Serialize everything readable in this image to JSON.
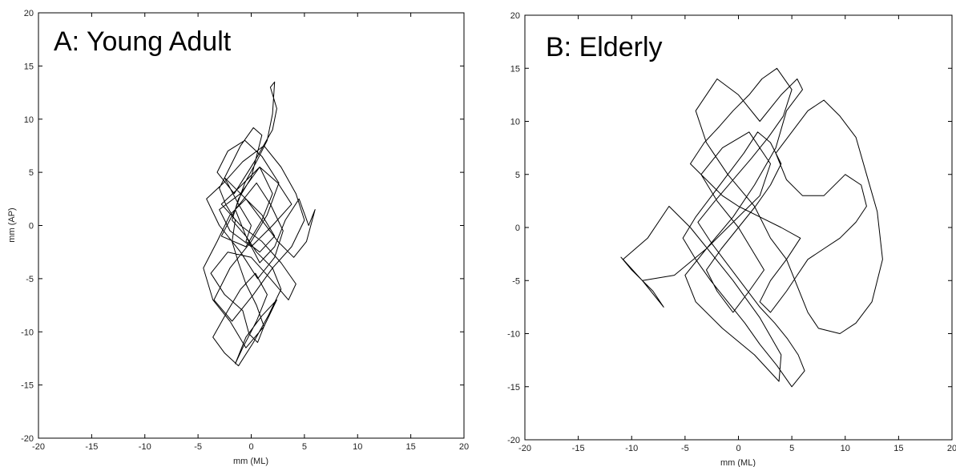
{
  "chart_data": [
    {
      "type": "line",
      "title": "A: Young Adult",
      "xlabel": "mm (ML)",
      "ylabel": "mm (AP)",
      "xlim": [
        -20,
        20
      ],
      "ylim": [
        -20,
        20
      ],
      "xticks": [
        -20,
        -15,
        -10,
        -5,
        0,
        5,
        10,
        15,
        20
      ],
      "yticks": [
        -20,
        -15,
        -10,
        -5,
        0,
        5,
        10,
        15,
        20
      ],
      "grid": false,
      "series": [
        {
          "color": "#000000",
          "x": [
            0.0,
            -1.2,
            -2.5,
            -1.0,
            0.8,
            2.0,
            1.0,
            -0.5,
            -2.8,
            -1.5,
            0.5,
            1.8,
            3.0,
            2.2,
            0.6,
            -1.0,
            -3.0,
            -4.2,
            -2.6,
            -0.8,
            1.2,
            2.8,
            4.2,
            5.0,
            3.8,
            2.0,
            0.2,
            -1.8,
            -3.5,
            -2.0,
            0.0,
            1.5,
            2.6,
            1.0,
            -0.6,
            -2.2,
            -3.2,
            -1.6,
            0.3,
            2.0,
            2.4,
            1.8,
            2.2,
            2.0,
            1.5,
            0.5,
            -0.6,
            -1.5,
            -0.5,
            0.8,
            2.2,
            3.2,
            4.5,
            5.4,
            6.0,
            5.2,
            4.0,
            2.5,
            1.0,
            -0.5,
            -2.0,
            -3.2,
            -4.5,
            -3.6,
            -2.0,
            -0.5,
            1.2,
            2.4,
            1.0,
            -0.5,
            -1.5,
            -0.8,
            0.5,
            1.5,
            0.4,
            -1.0,
            -2.2,
            -3.6,
            -2.5,
            -1.2,
            0.2,
            1.6,
            2.8,
            2.0,
            0.5,
            -0.5,
            -1.8,
            -1.2,
            0.0,
            0.5,
            1.0,
            0.2,
            -1.0,
            -2.0,
            -3.0,
            -2.4,
            -1.5,
            -1.8,
            -1.2,
            -0.5,
            0.5,
            1.2,
            0.6,
            -0.2,
            -0.8,
            -2.5,
            -3.8,
            -2.2,
            0.0,
            1.8,
            3.5,
            4.2,
            2.8,
            1.0,
            -1.0,
            -2.8,
            -1.2,
            0.8,
            2.5,
            3.8,
            2.0,
            0.0,
            -2.0,
            -3.0,
            -1.0,
            1.0,
            2.2,
            0.8,
            -0.5,
            0.0
          ],
          "y": [
            0.0,
            2.0,
            4.5,
            3.0,
            5.5,
            3.0,
            0.5,
            -2.0,
            -1.0,
            1.5,
            4.0,
            2.0,
            -0.5,
            -3.0,
            -5.0,
            -2.5,
            0.0,
            2.5,
            4.0,
            6.0,
            7.5,
            5.5,
            3.0,
            0.5,
            -2.0,
            -4.0,
            -6.5,
            -9.0,
            -7.0,
            -4.0,
            -1.5,
            1.0,
            4.0,
            6.5,
            8.0,
            7.0,
            5.0,
            3.0,
            6.0,
            9.0,
            11.0,
            13.0,
            13.5,
            10.5,
            8.0,
            6.0,
            4.0,
            1.5,
            -1.0,
            -3.5,
            -2.0,
            0.5,
            2.5,
            0.0,
            1.5,
            -1.5,
            -3.0,
            -1.5,
            0.5,
            2.5,
            1.0,
            -1.5,
            -4.0,
            -7.0,
            -9.0,
            -11.5,
            -9.5,
            -7.0,
            -8.5,
            -10.5,
            -13.0,
            -11.5,
            -9.0,
            -6.5,
            -4.5,
            -6.0,
            -8.0,
            -10.5,
            -12.0,
            -13.2,
            -11.0,
            -8.5,
            -6.0,
            -4.0,
            -2.5,
            -1.0,
            0.5,
            2.5,
            4.5,
            6.5,
            8.5,
            9.2,
            7.5,
            5.5,
            3.5,
            2.0,
            0.5,
            -1.5,
            -3.5,
            -5.5,
            -7.5,
            -9.5,
            -11.0,
            -10.2,
            -8.0,
            -6.5,
            -4.5,
            -2.5,
            -3.0,
            -5.0,
            -7.0,
            -5.5,
            -3.5,
            -1.5,
            0.0,
            2.0,
            3.5,
            5.5,
            4.0,
            2.0,
            0.0,
            -2.0,
            -0.5,
            1.5,
            3.0,
            1.0,
            -1.0,
            -2.5,
            -1.5,
            0.0
          ]
        }
      ]
    },
    {
      "type": "line",
      "title": "B: Elderly",
      "xlabel": "mm (ML)",
      "ylabel": "",
      "xlim": [
        -20,
        20
      ],
      "ylim": [
        -20,
        20
      ],
      "xticks": [
        -20,
        -15,
        -10,
        -5,
        0,
        5,
        10,
        15,
        20
      ],
      "yticks": [
        -20,
        -15,
        -10,
        -5,
        0,
        5,
        10,
        15,
        20
      ],
      "grid": false,
      "series": [
        {
          "color": "#000000",
          "x": [
            0.0,
            -2.0,
            -3.5,
            -1.5,
            1.0,
            3.0,
            2.0,
            -0.5,
            -3.0,
            -5.0,
            -4.0,
            -1.5,
            1.5,
            3.8,
            4.0,
            2.0,
            -0.5,
            -2.5,
            -4.5,
            -6.5,
            -8.5,
            -10.8,
            -9.0,
            -7.0,
            -8.0,
            -10.0,
            -11.0,
            -9.0,
            -6.0,
            -3.0,
            -0.5,
            1.5,
            3.5,
            4.5,
            6.0,
            5.5,
            4.0,
            2.0,
            0.0,
            -2.0,
            -4.0,
            -3.0,
            -1.0,
            1.5,
            3.0,
            4.5,
            5.5,
            6.5,
            7.5,
            9.5,
            11.0,
            12.5,
            13.5,
            13.0,
            12.0,
            11.0,
            9.5,
            8.0,
            6.5,
            5.0,
            3.5,
            4.5,
            6.0,
            8.0,
            10.0,
            11.5,
            12.0,
            11.0,
            9.5,
            8.0,
            6.5,
            5.5,
            4.5,
            3.0,
            2.0,
            3.0,
            4.5,
            5.8,
            4.0,
            2.0,
            0.0,
            -1.5,
            -3.0,
            -4.5,
            -3.2,
            -1.8,
            -0.5,
            1.0,
            2.2,
            3.6,
            5.0,
            4.2,
            2.8,
            1.2,
            -0.5,
            -2.2,
            -3.8,
            -2.5,
            -1.0,
            0.5,
            2.0,
            3.4,
            4.6,
            5.6,
            6.2,
            5.0,
            3.6,
            2.0,
            0.6,
            -1.0,
            -2.6,
            -4.0,
            -5.2,
            -4.0,
            -2.5,
            -1.0,
            0.5,
            1.8,
            3.0,
            4.0,
            3.0,
            1.6,
            0.0,
            -1.6,
            -3.0,
            -2.0,
            -0.5,
            1.0,
            2.4,
            1.2,
            0.0
          ],
          "y": [
            0.0,
            2.5,
            5.0,
            7.5,
            9.0,
            6.0,
            3.0,
            0.5,
            -2.0,
            -4.5,
            -7.0,
            -9.5,
            -12.0,
            -14.5,
            -12.0,
            -8.5,
            -5.0,
            -2.5,
            0.0,
            2.0,
            -1.0,
            -3.0,
            -5.0,
            -7.5,
            -6.0,
            -4.0,
            -2.8,
            -5.0,
            -4.5,
            -2.0,
            1.0,
            4.0,
            7.5,
            11.0,
            13.0,
            14.0,
            12.5,
            10.0,
            12.5,
            14.0,
            11.0,
            8.0,
            5.0,
            2.0,
            -1.0,
            -3.0,
            -5.5,
            -8.0,
            -9.5,
            -10.0,
            -9.0,
            -7.0,
            -3.0,
            1.5,
            5.0,
            8.5,
            10.5,
            12.0,
            11.0,
            9.0,
            7.0,
            4.5,
            3.0,
            3.0,
            5.0,
            4.0,
            2.0,
            0.5,
            -1.0,
            -2.0,
            -3.0,
            -4.5,
            -6.0,
            -8.0,
            -7.0,
            -5.0,
            -3.0,
            -1.0,
            0.0,
            1.0,
            2.0,
            3.0,
            4.5,
            6.0,
            8.0,
            9.5,
            11.0,
            12.5,
            14.0,
            15.0,
            13.0,
            10.5,
            8.5,
            6.5,
            4.5,
            2.5,
            0.5,
            -1.5,
            -3.5,
            -5.5,
            -7.5,
            -9.0,
            -10.5,
            -12.0,
            -13.5,
            -15.0,
            -13.0,
            -11.0,
            -9.0,
            -7.0,
            -5.0,
            -3.0,
            -1.0,
            1.0,
            3.0,
            5.0,
            7.0,
            9.0,
            8.0,
            6.0,
            4.0,
            2.0,
            0.0,
            -2.0,
            -4.0,
            -6.0,
            -8.0,
            -6.0,
            -4.0,
            -2.0,
            0.0
          ]
        }
      ]
    }
  ]
}
